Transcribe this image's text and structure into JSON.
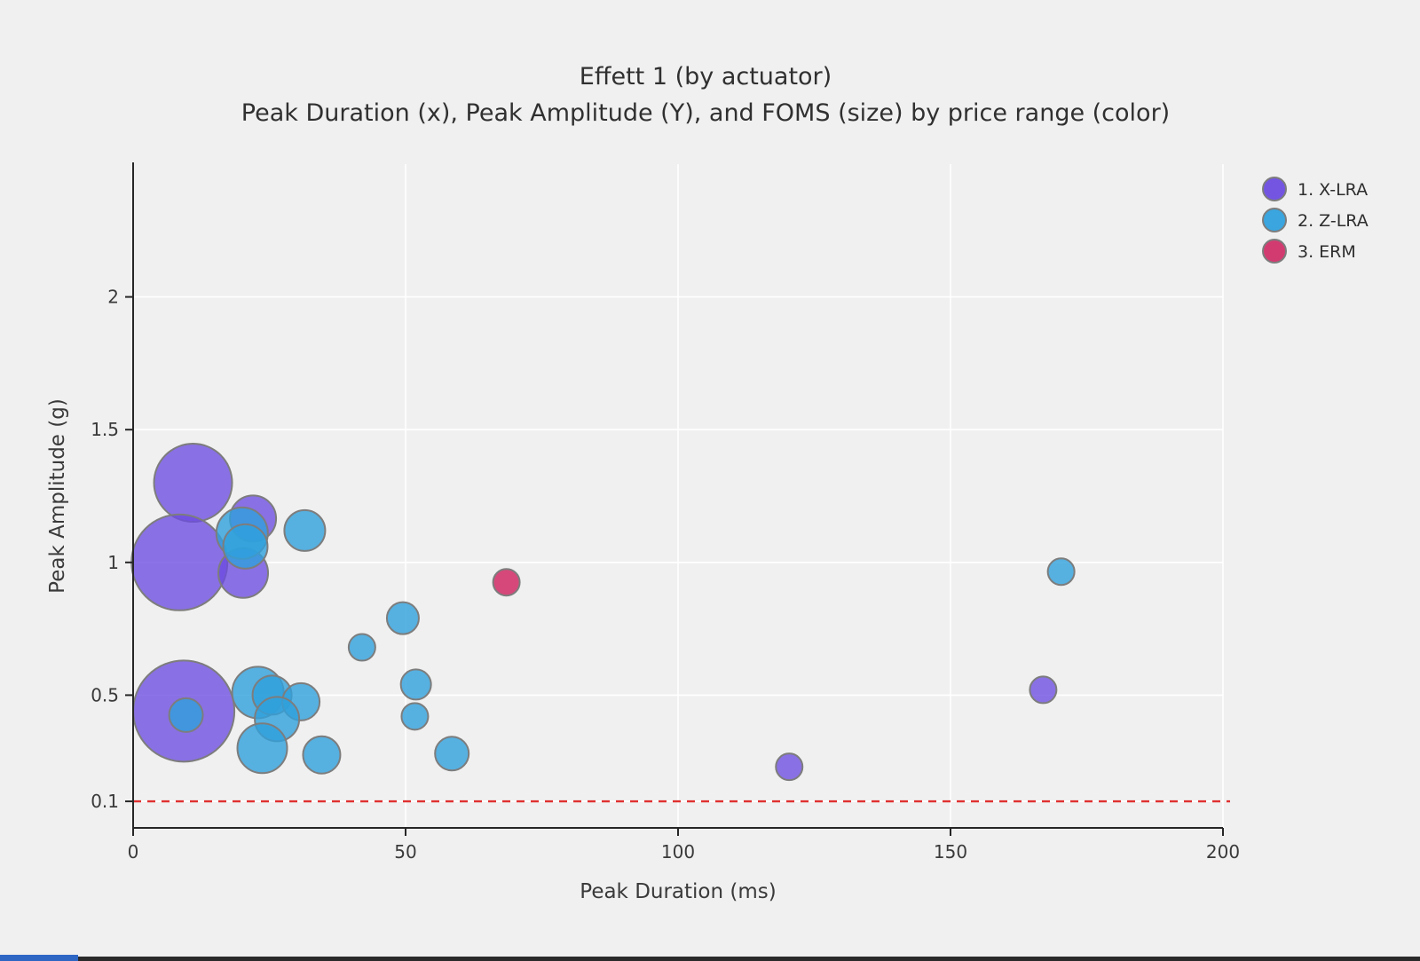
{
  "chart": {
    "title": "Effett 1 (by actuator)",
    "subtitle": "Peak Duration (x), Peak Amplitude (Y), and FOMS (size) by price range (color)",
    "xlabel": "Peak Duration (ms)",
    "ylabel": "Peak Amplitude (g)"
  },
  "chart_data": {
    "type": "scatter",
    "subtype": "bubble",
    "title": "Effett 1 (by actuator)",
    "subtitle": "Peak Duration (x), Peak Amplitude (Y), and FOMS (size) by price range (color)",
    "xlabel": "Peak Duration (ms)",
    "ylabel": "Peak Amplitude (g)",
    "xlim": [
      0,
      200
    ],
    "ylim": [
      0,
      2.5
    ],
    "x_ticks": [
      "0",
      "50",
      "100",
      "150",
      "200"
    ],
    "x_tick_values": [
      0,
      50,
      100,
      150,
      200
    ],
    "y_ticks": [
      "0.1",
      "0.5",
      "1",
      "1.5",
      "2"
    ],
    "y_tick_values": [
      0.1,
      0.5,
      1,
      1.5,
      2
    ],
    "grid": true,
    "legend_position": "top-right",
    "size_note": "r = bubble radius in screen px encoding FOMS (no numeric FOMS labels shown)",
    "threshold_line": {
      "y": 0.1,
      "style": "dashed",
      "color": "#e03131"
    },
    "series": [
      {
        "name": "1. X-LRA",
        "color": "#6b4ce0",
        "fill_opacity": 0.78,
        "points": [
          {
            "x": 11.0,
            "y": 1.3,
            "r": 44
          },
          {
            "x": 8.5,
            "y": 1.0,
            "r": 54
          },
          {
            "x": 22.0,
            "y": 1.165,
            "r": 26
          },
          {
            "x": 20.2,
            "y": 0.96,
            "r": 28
          },
          {
            "x": 9.3,
            "y": 0.44,
            "r": 57
          },
          {
            "x": 120.4,
            "y": 0.23,
            "r": 15
          },
          {
            "x": 167.0,
            "y": 0.52,
            "r": 15
          }
        ]
      },
      {
        "name": "2. Z-LRA",
        "color": "#2fa0dc",
        "fill_opacity": 0.8,
        "points": [
          {
            "x": 20.0,
            "y": 1.11,
            "r": 29
          },
          {
            "x": 20.6,
            "y": 1.06,
            "r": 25
          },
          {
            "x": 31.5,
            "y": 1.12,
            "r": 23
          },
          {
            "x": 9.7,
            "y": 0.425,
            "r": 19
          },
          {
            "x": 22.9,
            "y": 0.51,
            "r": 29
          },
          {
            "x": 25.5,
            "y": 0.5,
            "r": 22
          },
          {
            "x": 30.8,
            "y": 0.475,
            "r": 21
          },
          {
            "x": 26.4,
            "y": 0.41,
            "r": 25
          },
          {
            "x": 23.7,
            "y": 0.3,
            "r": 28
          },
          {
            "x": 34.6,
            "y": 0.275,
            "r": 21
          },
          {
            "x": 42.0,
            "y": 0.68,
            "r": 15
          },
          {
            "x": 49.5,
            "y": 0.79,
            "r": 18
          },
          {
            "x": 51.9,
            "y": 0.54,
            "r": 17
          },
          {
            "x": 51.7,
            "y": 0.42,
            "r": 15
          },
          {
            "x": 58.5,
            "y": 0.28,
            "r": 19
          },
          {
            "x": 170.3,
            "y": 0.965,
            "r": 15
          }
        ]
      },
      {
        "name": "3. ERM",
        "color": "#d03068",
        "fill_opacity": 0.88,
        "points": [
          {
            "x": 68.5,
            "y": 0.925,
            "r": 15
          }
        ]
      }
    ]
  },
  "style": {
    "background": "#f0f0f0",
    "gridline_color": "#ffffff",
    "axis_color": "#262626",
    "tick_label_color": "#3a3a3a",
    "bubble_stroke": "#7d7d7d"
  }
}
